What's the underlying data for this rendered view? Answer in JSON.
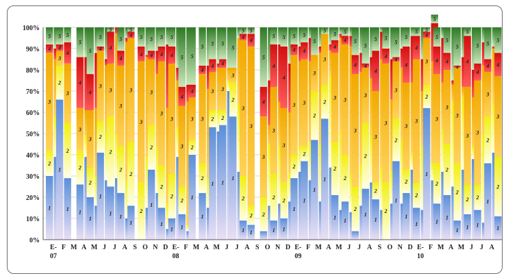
{
  "chart_data": {
    "type": "bar",
    "stacked": true,
    "y_unit": "%",
    "ylim": [
      0,
      100
    ],
    "yticks": [
      "0%",
      "10%",
      "20%",
      "30%",
      "40%",
      "50%",
      "60%",
      "70%",
      "80%",
      "90%",
      "100%"
    ],
    "series": [
      {
        "name": "1",
        "color": "#5b8fd9"
      },
      {
        "name": "2",
        "color": "#f3f318"
      },
      {
        "name": "3",
        "color": "#f5b300"
      },
      {
        "name": "4",
        "color": "#e01b1b"
      },
      {
        "name": "5",
        "color": "#3f8a2c"
      }
    ],
    "month_labels": [
      "E-",
      "F",
      "M",
      "A",
      "M",
      "J",
      "J",
      "A",
      "S",
      "O",
      "N",
      "D",
      "E-",
      "F",
      "M",
      "A",
      "M",
      "J",
      "J",
      "A",
      "S",
      "O",
      "N",
      "D",
      "E-",
      "F",
      "M",
      "A",
      "M",
      "J",
      "J",
      "A",
      "S",
      "O",
      "N",
      "D",
      "E-",
      "F",
      "M",
      "A",
      "M",
      "J",
      "J",
      "A",
      "S"
    ],
    "year_labels": [
      {
        "label": "07",
        "month_index": 0
      },
      {
        "label": "08",
        "month_index": 12
      },
      {
        "label": "09",
        "month_index": 24
      },
      {
        "label": "10",
        "month_index": 36
      }
    ],
    "months": [
      {
        "label": "E-",
        "bars": [
          [
            30,
            12,
            46,
            4,
            8
          ],
          [
            39,
            19,
            27,
            5,
            10
          ]
        ]
      },
      {
        "label": "F",
        "bars": [
          [
            66,
            16,
            7,
            3,
            8
          ],
          [
            29,
            26,
            28,
            10,
            7
          ]
        ]
      },
      {
        "label": "M",
        "bars": []
      },
      {
        "label": "A",
        "bars": [
          [
            26,
            16,
            20,
            24,
            14
          ],
          [
            39,
            10,
            12,
            25,
            14
          ]
        ]
      },
      {
        "label": "M",
        "bars": [
          [
            20,
            14,
            27,
            17,
            22
          ],
          [
            16,
            14,
            32,
            26,
            12
          ]
        ]
      },
      {
        "label": "J",
        "bars": [
          [
            41,
            15,
            33,
            2,
            9
          ],
          [
            28,
            23,
            31,
            3,
            15
          ]
        ]
      },
      {
        "label": "J",
        "bars": [
          [
            25,
            33,
            25,
            15,
            2
          ],
          [
            29,
            21,
            47,
            3,
            0
          ]
        ]
      },
      {
        "label": "A",
        "bars": [
          [
            22,
            22,
            38,
            7,
            11
          ],
          [
            10,
            18,
            65,
            2,
            5
          ]
        ]
      },
      {
        "label": "S",
        "bars": [
          [
            16,
            30,
            49,
            3,
            2
          ],
          [
            0,
            0,
            0,
            0,
            0
          ]
        ]
      },
      {
        "label": "O",
        "bars": [
          [
            0,
            27,
            57,
            7,
            9
          ],
          [
            15,
            24,
            47,
            1,
            13
          ]
        ]
      },
      {
        "label": "N",
        "bars": [
          [
            33,
            21,
            31,
            4,
            11
          ],
          [
            22,
            22,
            34,
            11,
            11
          ]
        ]
      },
      {
        "label": "D",
        "bars": [
          [
            15,
            20,
            49,
            7,
            9
          ],
          [
            5,
            12,
            45,
            30,
            8
          ]
        ]
      },
      {
        "label": "E-",
        "bars": [
          [
            10,
            21,
            52,
            8,
            9
          ],
          [
            39,
            14,
            22,
            6,
            19
          ]
        ]
      },
      {
        "label": "F",
        "bars": [
          [
            12,
            13,
            38,
            9,
            28
          ],
          [
            4,
            3,
            58,
            8,
            27
          ]
        ]
      },
      {
        "label": "M",
        "bars": [
          [
            40,
            7,
            20,
            6,
            27
          ],
          [
            0,
            0,
            0,
            0,
            0
          ]
        ]
      },
      {
        "label": "A",
        "bars": [
          [
            22,
            14,
            42,
            4,
            18
          ],
          [
            15,
            14,
            42,
            11,
            18
          ]
        ]
      },
      {
        "label": "M",
        "bars": [
          [
            53,
            8,
            18,
            6,
            15
          ],
          [
            51,
            10,
            20,
            2,
            17
          ]
        ]
      },
      {
        "label": "J",
        "bars": [
          [
            54,
            7,
            20,
            4,
            15
          ],
          [
            70,
            5,
            6,
            0,
            19
          ]
        ]
      },
      {
        "label": "J",
        "bars": [
          [
            58,
            16,
            7,
            0,
            19
          ],
          [
            32,
            32,
            31,
            0,
            5
          ]
        ]
      },
      {
        "label": "A",
        "bars": [
          [
            9,
            21,
            64,
            3,
            3
          ],
          [
            7,
            9,
            75,
            6,
            3
          ]
        ]
      },
      {
        "label": "S",
        "bars": [
          [
            0,
            0,
            0,
            0,
            0
          ],
          [
            0,
            0,
            0,
            0,
            0
          ]
        ]
      },
      {
        "label": "O",
        "bars": [
          [
            4,
            16,
            38,
            14,
            28
          ],
          [
            16,
            29,
            9,
            21,
            25
          ]
        ]
      },
      {
        "label": "N",
        "bars": [
          [
            9,
            22,
            41,
            20,
            8
          ],
          [
            17,
            27,
            21,
            27,
            8
          ]
        ]
      },
      {
        "label": "D",
        "bars": [
          [
            10,
            17,
            35,
            29,
            9
          ],
          [
            18,
            13,
            29,
            23,
            17
          ]
        ]
      },
      {
        "label": "E-",
        "bars": [
          [
            29,
            11,
            47,
            5,
            8
          ],
          [
            32,
            12,
            40,
            7,
            9
          ]
        ]
      },
      {
        "label": "F",
        "bars": [
          [
            37,
            7,
            41,
            8,
            7
          ],
          [
            28,
            18,
            38,
            11,
            5
          ]
        ]
      },
      {
        "label": "M",
        "bars": [
          [
            47,
            23,
            17,
            0,
            13
          ],
          [
            18,
            27,
            43,
            3,
            9
          ]
        ]
      },
      {
        "label": "A",
        "bars": [
          [
            57,
            16,
            24,
            0,
            3
          ],
          [
            34,
            43,
            12,
            3,
            8
          ]
        ]
      },
      {
        "label": "M",
        "bars": [
          [
            21,
            25,
            42,
            6,
            6
          ],
          [
            14,
            37,
            44,
            2,
            3
          ]
        ]
      },
      {
        "label": "J",
        "bars": [
          [
            18,
            22,
            52,
            4,
            4
          ],
          [
            13,
            18,
            60,
            5,
            4
          ]
        ]
      },
      {
        "label": "J",
        "bars": [
          [
            4,
            21,
            53,
            9,
            13
          ],
          [
            16,
            19,
            44,
            9,
            12
          ]
        ]
      },
      {
        "label": "A",
        "bars": [
          [
            24,
            31,
            26,
            2,
            17
          ],
          [
            27,
            22,
            27,
            10,
            14
          ]
        ]
      },
      {
        "label": "S",
        "bars": [
          [
            19,
            8,
            43,
            19,
            11
          ],
          [
            14,
            20,
            51,
            13,
            2
          ]
        ]
      },
      {
        "label": "O",
        "bars": [
          [
            0,
            27,
            56,
            7,
            10
          ],
          [
            17,
            15,
            34,
            19,
            15
          ]
        ]
      },
      {
        "label": "N",
        "bars": [
          [
            37,
            20,
            27,
            2,
            14
          ],
          [
            17,
            30,
            34,
            9,
            10
          ]
        ]
      },
      {
        "label": "D",
        "bars": [
          [
            22,
            11,
            41,
            17,
            9
          ],
          [
            33,
            8,
            33,
            22,
            4
          ]
        ]
      },
      {
        "label": "E-",
        "bars": [
          [
            15,
            12,
            58,
            11,
            4
          ],
          [
            14,
            30,
            26,
            15,
            15
          ]
        ]
      },
      {
        "label": "F",
        "bars": [
          [
            62,
            11,
            22,
            3,
            2
          ],
          [
            28,
            8,
            48,
            18,
            4
          ]
        ]
      },
      {
        "label": "M",
        "bars": [
          [
            17,
            19,
            42,
            13,
            9
          ],
          [
            32,
            20,
            22,
            21,
            5
          ]
        ]
      },
      {
        "label": "A",
        "bars": [
          [
            21,
            24,
            35,
            8,
            12
          ],
          [
            25,
            40,
            8,
            2,
            25
          ]
        ]
      },
      {
        "label": "M",
        "bars": [
          [
            9,
            27,
            45,
            1,
            18
          ],
          [
            33,
            34,
            5,
            14,
            14
          ]
        ]
      },
      {
        "label": "J",
        "bars": [
          [
            12,
            14,
            46,
            24,
            4
          ],
          [
            38,
            6,
            23,
            13,
            20
          ]
        ]
      },
      {
        "label": "J",
        "bars": [
          [
            14,
            12,
            49,
            8,
            17
          ],
          [
            8,
            42,
            32,
            11,
            7
          ]
        ]
      },
      {
        "label": "A",
        "bars": [
          [
            36,
            22,
            21,
            6,
            15
          ],
          [
            41,
            23,
            26,
            1,
            9
          ]
        ]
      },
      {
        "label": "S",
        "bars": [
          [
            11,
            28,
            38,
            11,
            12
          ],
          [
            20,
            27,
            34,
            8,
            11
          ]
        ]
      }
    ]
  }
}
